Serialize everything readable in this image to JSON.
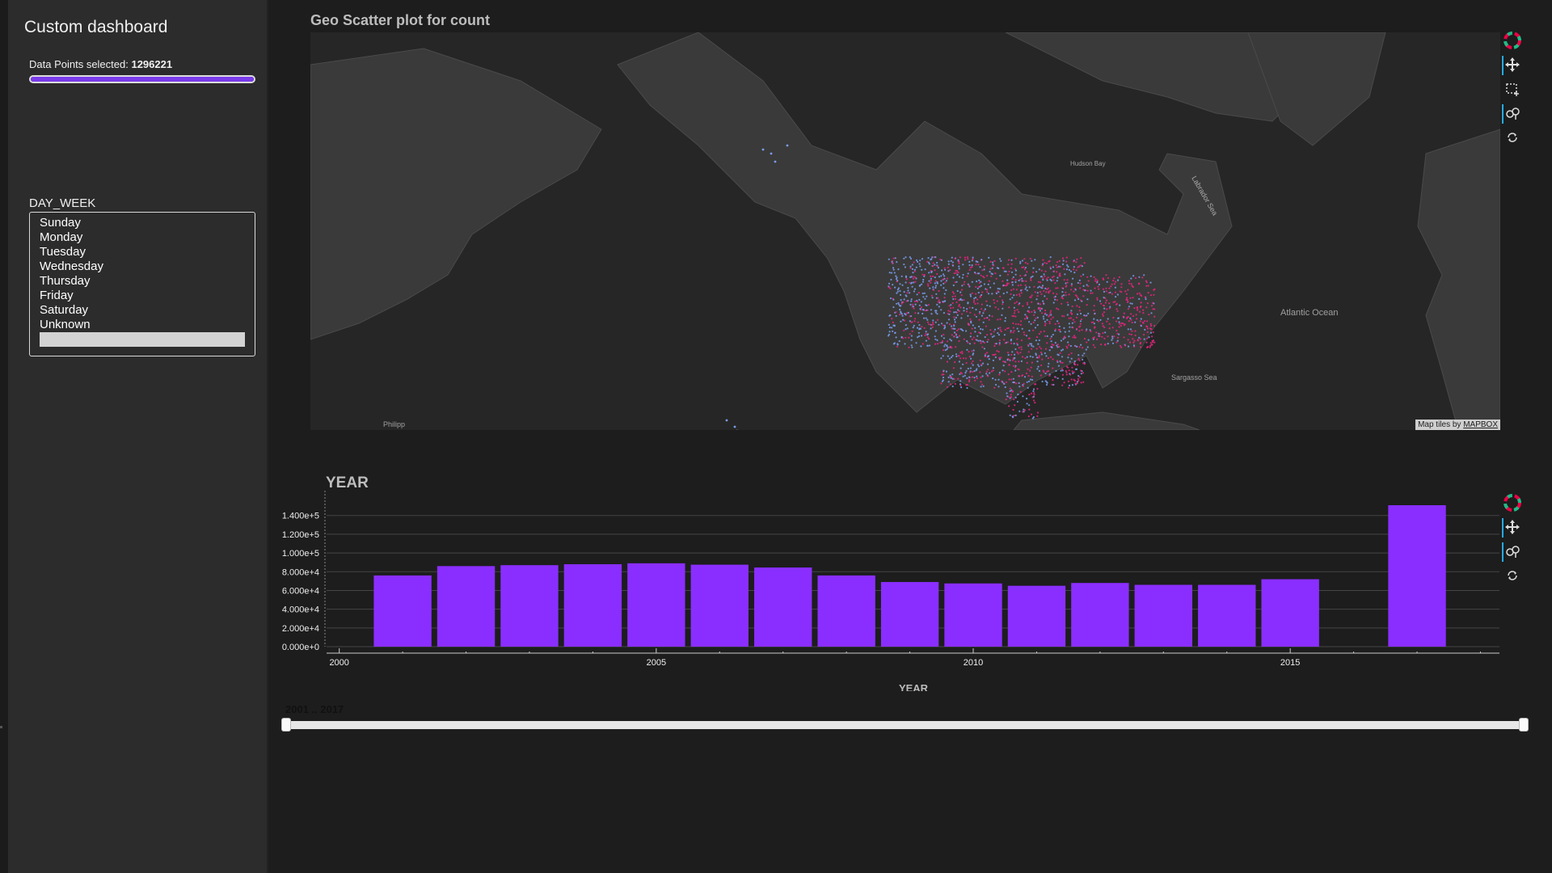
{
  "sidebar": {
    "title": "Custom dashboard",
    "selection_label": "Data Points selected: ",
    "selection_value": "1296221",
    "selection_fraction": 1.0,
    "day_week": {
      "label": "DAY_WEEK",
      "options": [
        "Sunday",
        "Monday",
        "Tuesday",
        "Wednesday",
        "Thursday",
        "Friday",
        "Saturday",
        "Unknown",
        ""
      ]
    }
  },
  "map": {
    "title": "Geo Scatter plot for count",
    "attribution_prefix": "Map tiles by ",
    "attribution_link": "MAPBOX",
    "labels": {
      "hudson_bay": "Hudson Bay",
      "atlantic": "Atlantic Ocean",
      "sargasso": "Sargasso Sea",
      "philippine": "Philipp",
      "labrador": "Labrador Sea"
    },
    "point_colors": [
      "#e8257f",
      "#7a9ef0"
    ]
  },
  "toolbar_icons": [
    "bokeh-logo-icon",
    "pan-icon",
    "box-select-icon",
    "wheel-zoom-icon",
    "reset-icon"
  ],
  "chart_data": {
    "type": "bar",
    "title": "YEAR",
    "xlabel": "YEAR",
    "ylabel": "",
    "color": "#8a2eff",
    "categories": [
      2001,
      2002,
      2003,
      2004,
      2005,
      2006,
      2007,
      2008,
      2009,
      2010,
      2011,
      2012,
      2013,
      2014,
      2015,
      2016,
      2017
    ],
    "values": [
      76000,
      86000,
      87000,
      88000,
      89000,
      87500,
      84500,
      76000,
      69000,
      67500,
      65000,
      68000,
      66000,
      66000,
      72000,
      0,
      151000
    ],
    "xlim": [
      1999.8,
      2018.3
    ],
    "ylim": [
      0,
      151000
    ],
    "x_ticks": [
      2000,
      2005,
      2010,
      2015
    ],
    "x_tick_labels": [
      "2000",
      "2005",
      "2010",
      "2015"
    ],
    "y_ticks": [
      0,
      20000,
      40000,
      60000,
      80000,
      100000,
      120000,
      140000
    ],
    "y_tick_labels": [
      "0.000e+0",
      "2.000e+4",
      "4.000e+4",
      "6.000e+4",
      "8.000e+4",
      "1.000e+5",
      "1.200e+5",
      "1.400e+5"
    ],
    "grid": true
  },
  "slider": {
    "label": "2001 .. 2017",
    "range": [
      2001,
      2017
    ]
  }
}
